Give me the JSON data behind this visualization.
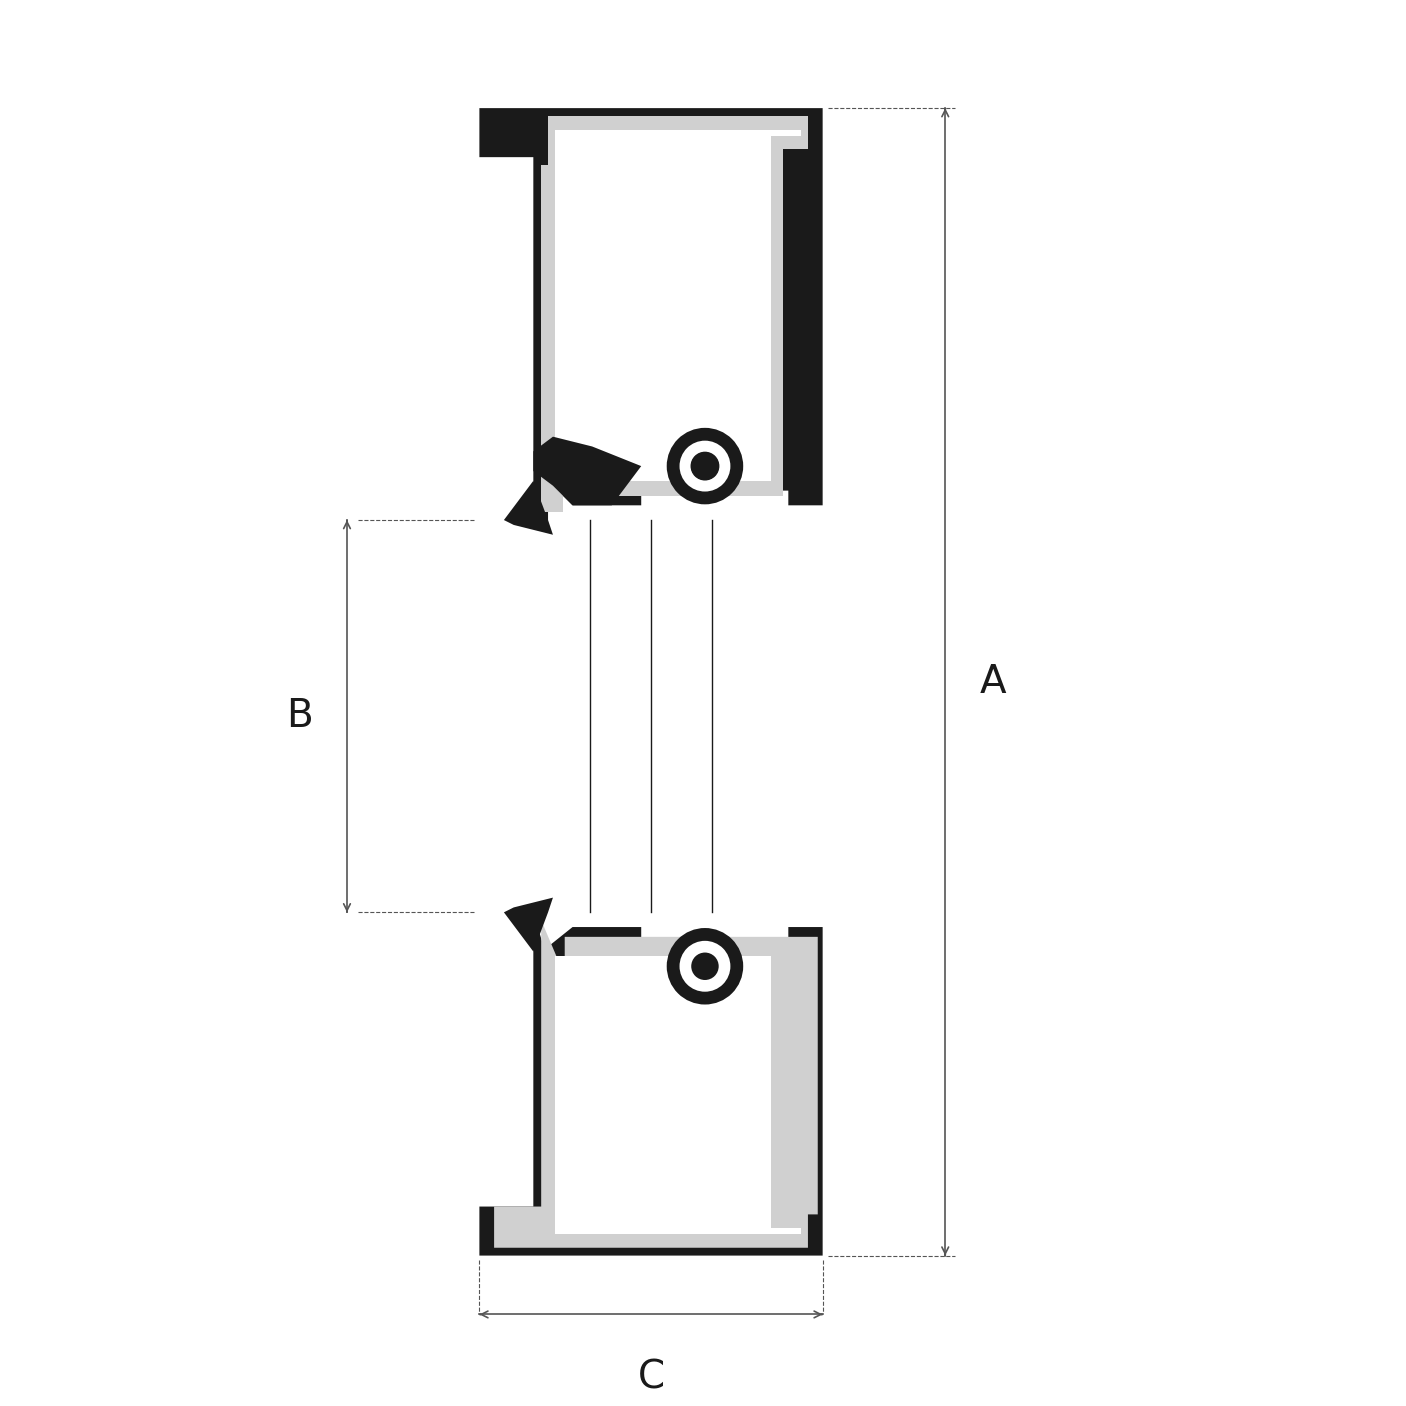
{
  "bg_color": "#ffffff",
  "line_color": "#1a1a1a",
  "black_fill": "#1a1a1a",
  "gray_fill": "#d0d0d0",
  "dim_line_color": "#555555",
  "fig_width": 14.06,
  "fig_height": 14.06,
  "label_A": "A",
  "label_B": "B",
  "label_C": "C",
  "label_fontsize": 28,
  "annotation_fontsize": 22
}
